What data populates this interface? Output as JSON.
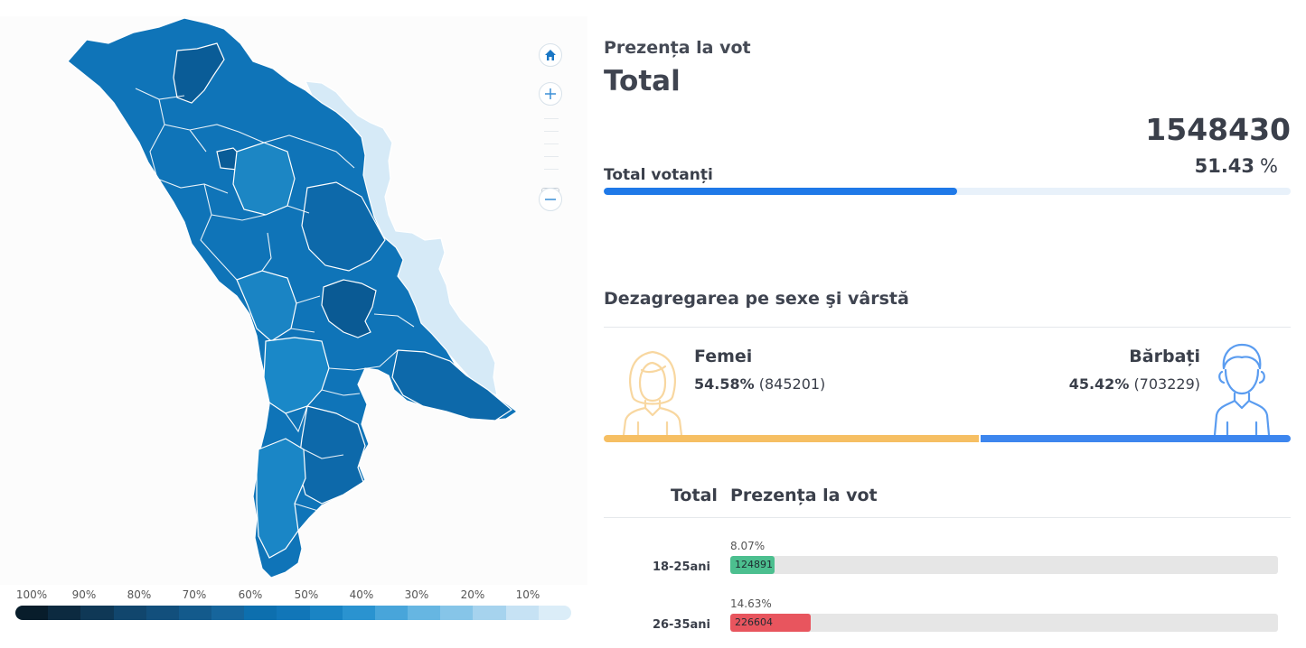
{
  "map": {
    "regions": [
      {
        "name": "north-1",
        "level": 5
      },
      {
        "name": "north-2",
        "level": 4
      },
      {
        "name": "center",
        "level": 5
      },
      {
        "name": "chisinau",
        "level": 2
      },
      {
        "name": "south",
        "level": 4
      },
      {
        "name": "transnistria",
        "level": 9
      }
    ],
    "zoom": {
      "home_icon": "home-icon",
      "zoom_in_icon": "plus-icon",
      "zoom_out_icon": "minus-icon"
    },
    "legend": {
      "labels": [
        "100%",
        "90%",
        "80%",
        "70%",
        "60%",
        "50%",
        "40%",
        "30%",
        "20%",
        "10%"
      ],
      "colors": [
        "#081d2b",
        "#0c2a40",
        "#0f3856",
        "#11466d",
        "#124f7c",
        "#135a8c",
        "#16659c",
        "#0d6fae",
        "#1176b8",
        "#1a84c4",
        "#2a93d0",
        "#48a5da",
        "#66b6e2",
        "#86c5e8",
        "#a6d3ee",
        "#c6e2f4",
        "#dbedf8"
      ]
    }
  },
  "header": {
    "title_small": "Prezența la vot",
    "title_big": "Total"
  },
  "turnout": {
    "total_voters": "1548430",
    "percent": "51.43",
    "percent_symbol": "%",
    "label": "Total votanți",
    "fraction": 0.5143,
    "bar_color": "#1f79e8"
  },
  "gender": {
    "section_title": "Dezagregarea pe sexe şi vârstă",
    "female": {
      "label": "Femei",
      "percent": "54.58%",
      "count": "(845201)",
      "fraction": 0.5458,
      "color": "#f6bf63",
      "icon": "woman-icon"
    },
    "male": {
      "label": "Bărbați",
      "percent": "45.42%",
      "count": "(703229)",
      "fraction": 0.4542,
      "color": "#3d86ee",
      "icon": "man-icon"
    }
  },
  "age_table": {
    "col_total": "Total",
    "col_turnout": "Prezența la vot",
    "rows": [
      {
        "label": "18-25ani",
        "percent": "8.07%",
        "count": "124891",
        "fraction": 0.0807,
        "color": "#4cbf8f"
      },
      {
        "label": "26-35ani",
        "percent": "14.63%",
        "count": "226604",
        "fraction": 0.1463,
        "color": "#e8555e"
      }
    ]
  }
}
